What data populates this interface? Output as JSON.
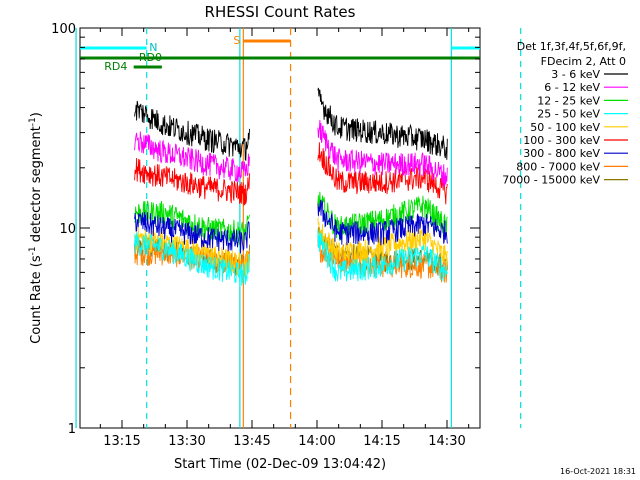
{
  "chart_data": {
    "type": "line",
    "title": "RHESSI Count Rates",
    "xlabel": "Start Time (02-Dec-09 13:04:42)",
    "ylabel_main": "Count Rate (s",
    "ylabel_sup1": "-1",
    "ylabel_mid": " detector segment",
    "ylabel_sup2": "-1",
    "ylabel_end": ")",
    "yscale": "log",
    "ylim": [
      1,
      100
    ],
    "xlim_minutes": [
      0,
      68
    ],
    "x_ticks": [
      {
        "label": "13:15",
        "minute": 10.3
      },
      {
        "label": "13:30",
        "minute": 25.3
      },
      {
        "label": "13:45",
        "minute": 40.3
      },
      {
        "label": "14:00",
        "minute": 55.3
      },
      {
        "label": "14:15",
        "minute": 70.3
      },
      {
        "label": "14:30",
        "minute": 85.3
      }
    ],
    "y_ticks": [
      {
        "label": "100",
        "value": 100
      },
      {
        "label": "10",
        "value": 10
      },
      {
        "label": "1",
        "value": 1
      }
    ],
    "legend_header": [
      "Det 1f,3f,4f,5f,6f,9f,",
      "FDecim 2, Att 0"
    ],
    "series": [
      {
        "name": "3 - 6 keV",
        "color": "#000000",
        "seg1": [
          [
            13.2,
            40
          ],
          [
            20,
            33
          ],
          [
            30,
            28
          ],
          [
            38.8,
            25
          ],
          [
            39.8,
            30
          ]
        ],
        "seg2": [
          [
            55.5,
            45
          ],
          [
            60,
            32
          ],
          [
            70,
            30
          ],
          [
            80,
            28
          ],
          [
            85.5,
            25
          ]
        ]
      },
      {
        "name": "6 - 12 keV",
        "color": "#ff00ff",
        "seg1": [
          [
            13.2,
            28
          ],
          [
            20,
            24
          ],
          [
            30,
            21
          ],
          [
            38.8,
            19
          ],
          [
            39.8,
            22
          ]
        ],
        "seg2": [
          [
            55.5,
            32
          ],
          [
            60,
            22
          ],
          [
            70,
            21
          ],
          [
            80,
            21
          ],
          [
            85.5,
            18
          ]
        ]
      },
      {
        "name": "12 - 25 keV",
        "color": "#00e000",
        "seg1": [
          [
            13.2,
            12
          ],
          [
            20,
            12
          ],
          [
            30,
            10
          ],
          [
            38.8,
            9.5
          ],
          [
            39.8,
            11
          ]
        ],
        "seg2": [
          [
            55.5,
            14
          ],
          [
            60,
            10
          ],
          [
            70,
            11
          ],
          [
            80,
            13
          ],
          [
            85.5,
            10
          ]
        ]
      },
      {
        "name": "25 - 50 keV",
        "color": "#00ffff",
        "seg1": [
          [
            13.2,
            8.5
          ],
          [
            20,
            8
          ],
          [
            30,
            6.5
          ],
          [
            38.8,
            5.8
          ],
          [
            39.8,
            7
          ]
        ],
        "seg2": [
          [
            55.5,
            9
          ],
          [
            60,
            6
          ],
          [
            70,
            6.5
          ],
          [
            80,
            7.5
          ],
          [
            85.5,
            6
          ]
        ]
      },
      {
        "name": "50 - 100 keV",
        "color": "#ffcc00",
        "seg1": [
          [
            13.2,
            9
          ],
          [
            20,
            8.5
          ],
          [
            30,
            7.5
          ],
          [
            38.8,
            6.5
          ],
          [
            39.8,
            7.5
          ]
        ],
        "seg2": [
          [
            55.5,
            10
          ],
          [
            60,
            7.5
          ],
          [
            70,
            8
          ],
          [
            80,
            9
          ],
          [
            85.5,
            7
          ]
        ]
      },
      {
        "name": "100 - 300 keV",
        "color": "#ff0000",
        "seg1": [
          [
            13.2,
            20
          ],
          [
            20,
            18
          ],
          [
            30,
            16
          ],
          [
            38.8,
            15
          ],
          [
            39.8,
            17
          ]
        ],
        "seg2": [
          [
            55.5,
            25
          ],
          [
            60,
            17
          ],
          [
            70,
            17
          ],
          [
            80,
            18
          ],
          [
            85.5,
            15
          ]
        ]
      },
      {
        "name": "300 - 800 keV",
        "color": "#0000cc",
        "seg1": [
          [
            13.2,
            11
          ],
          [
            20,
            10
          ],
          [
            30,
            9
          ],
          [
            38.8,
            8.5
          ],
          [
            39.8,
            10
          ]
        ],
        "seg2": [
          [
            55.5,
            13
          ],
          [
            60,
            9.5
          ],
          [
            70,
            9.5
          ],
          [
            80,
            10.5
          ],
          [
            85.5,
            9.5
          ]
        ]
      },
      {
        "name": "800 - 7000 keV",
        "color": "#ff8000",
        "seg1": [
          [
            13.2,
            7.5
          ],
          [
            20,
            7.5
          ],
          [
            30,
            7
          ],
          [
            38.8,
            6.5
          ],
          [
            39.8,
            7
          ]
        ],
        "seg2": [
          [
            55.5,
            8
          ],
          [
            60,
            7
          ],
          [
            70,
            6.5
          ],
          [
            80,
            6.5
          ],
          [
            85.5,
            6
          ]
        ]
      },
      {
        "name": "7000 - 15000 keV",
        "color": "#8b7500",
        "seg1": [
          [
            13.2,
            8
          ],
          [
            20,
            8
          ],
          [
            30,
            7
          ],
          [
            38.8,
            6.5
          ],
          [
            39.8,
            7.5
          ]
        ],
        "seg2": [
          [
            55.5,
            9
          ],
          [
            60,
            7.5
          ],
          [
            70,
            7
          ],
          [
            80,
            7
          ],
          [
            85.5,
            6.5
          ]
        ]
      }
    ],
    "annotations": {
      "rd0_label": "RD0",
      "rd4_label": "RD4",
      "n_label": "N",
      "s_label": "S",
      "timestamp": "16-Oct-2021 18:31"
    }
  }
}
